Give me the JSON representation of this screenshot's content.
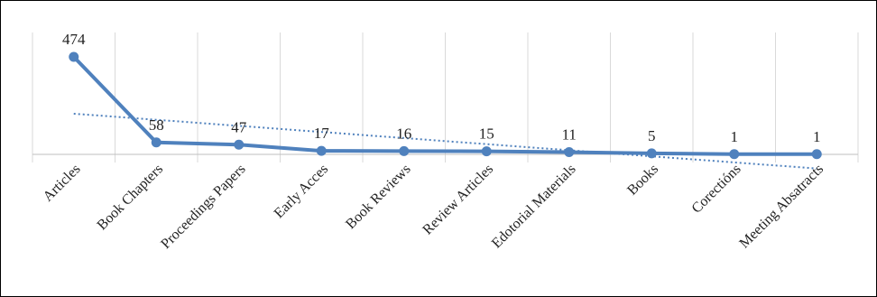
{
  "chart_data": {
    "type": "line",
    "categories": [
      "Articles",
      "Book Chapters",
      "Proceedings Papers",
      "Early Acces",
      "Book Reviews",
      "Review Articles",
      "Edotorial Materials",
      "Books",
      "Corectións",
      "Meeting Absatracts"
    ],
    "series": [
      {
        "values": [
          474,
          58,
          47,
          17,
          16,
          15,
          11,
          5,
          1,
          1
        ],
        "color": "#4f81bd"
      }
    ],
    "trendline": {
      "type": "linear",
      "style": "dotted",
      "color": "#4f81bd"
    },
    "data_labels": true,
    "grid": {
      "vertical": true,
      "horizontal": false
    },
    "legend": "none",
    "ylim": [
      -20,
      540
    ]
  }
}
